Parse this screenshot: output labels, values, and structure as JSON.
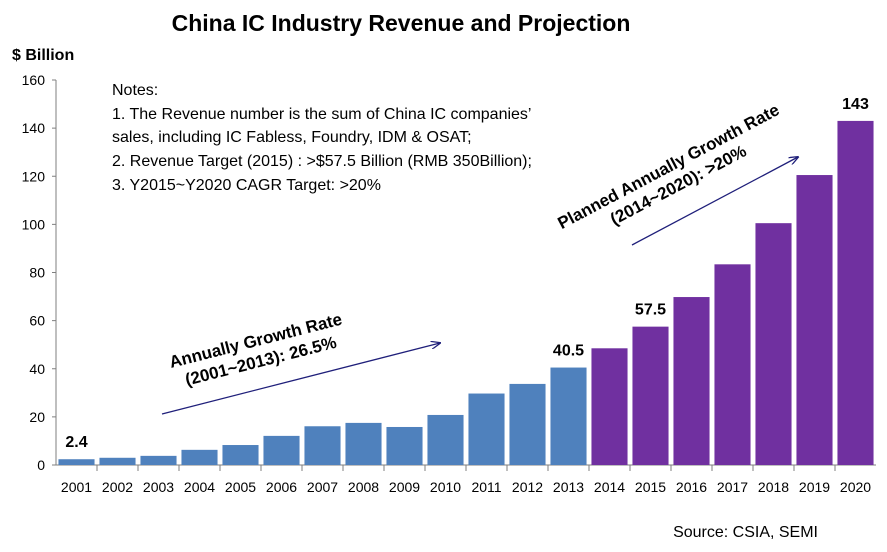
{
  "chart_data": {
    "type": "bar",
    "title": "China IC Industry Revenue and Projection",
    "ylabel": "$ Billion",
    "xlabel": "",
    "ylim": [
      0,
      160
    ],
    "yticks": [
      0,
      20,
      40,
      60,
      80,
      100,
      120,
      140,
      160
    ],
    "grid": false,
    "categories": [
      "2001",
      "2002",
      "2003",
      "2004",
      "2005",
      "2006",
      "2007",
      "2008",
      "2009",
      "2010",
      "2011",
      "2012",
      "2013",
      "2014",
      "2015",
      "2016",
      "2017",
      "2018",
      "2019",
      "2020"
    ],
    "values": [
      2.4,
      3.0,
      3.8,
      6.3,
      8.3,
      12.1,
      16.1,
      17.5,
      15.8,
      20.8,
      29.7,
      33.7,
      40.5,
      48.5,
      57.5,
      69.8,
      83.4,
      100.5,
      120.5,
      143
    ],
    "colors": {
      "historical": "#4f81bd",
      "projected": "#7030a0",
      "arrow": "#1f1f7a"
    },
    "data_labels": [
      {
        "category": "2001",
        "text": "2.4"
      },
      {
        "category": "2013",
        "text": "40.5"
      },
      {
        "category": "2015",
        "text": "57.5"
      },
      {
        "category": "2020",
        "text": "143"
      }
    ],
    "notes": [
      "Notes:",
      "1. The Revenue number is the sum of China IC companies’",
      "sales, including IC Fabless, Foundry, IDM & OSAT;",
      "2. Revenue Target (2015) :  >$57.5 Billion (RMB 350Billion);",
      "3. Y2015~Y2020 CAGR Target: >20%"
    ],
    "annotations": {
      "historical_line1": "Annually Growth Rate",
      "historical_line2": "(2001~2013): 26.5%",
      "planned_line1": "Planned Annually Growth Rate",
      "planned_line2": "(2014~2020): >20%"
    },
    "source": "Source: CSIA, SEMI"
  }
}
